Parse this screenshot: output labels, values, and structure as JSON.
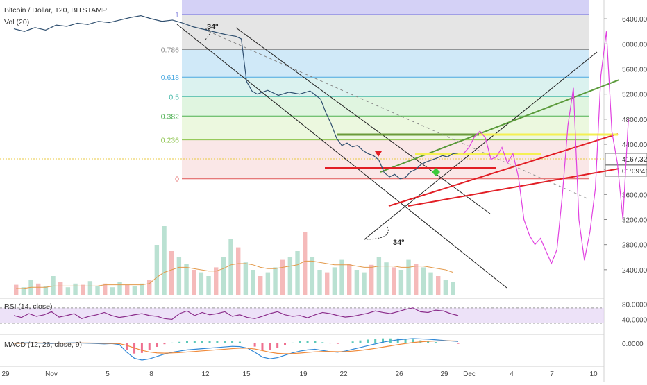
{
  "header": {
    "symbol_title": "Bitcoin / Dollar, 120, BITSTAMP",
    "vol_label": "Vol (20)"
  },
  "chart_data": [
    {
      "type": "line",
      "role": "main-price",
      "title": "Bitcoin / Dollar, 120, BITSTAMP",
      "y_axis_ticks": [
        6400,
        6000,
        5600,
        5200,
        4800,
        4400,
        4000,
        3600,
        3200,
        2800,
        2400
      ],
      "y_axis_tick_labels": [
        "6400.00",
        "6000.00",
        "5600.00",
        "5200.00",
        "4800.00",
        "4400.00",
        "4000.00",
        "3600.00",
        "3200.00",
        "2800.00",
        "2400.00"
      ],
      "ylim": [
        2000,
        6700
      ],
      "x_tick_labels": [
        "29",
        "Nov",
        "5",
        "8",
        "12",
        "15",
        "19",
        "22",
        "26",
        "29",
        "Dec",
        "4",
        "7",
        "10"
      ],
      "current_price_label": "4167.32",
      "countdown_label": "01:09:41",
      "fib_levels": [
        {
          "label": "1",
          "value": 6470
        },
        {
          "label": "0.786",
          "value": 5910
        },
        {
          "label": "0.618",
          "value": 5470
        },
        {
          "label": "0.5",
          "value": 5160
        },
        {
          "label": "0.382",
          "value": 4850
        },
        {
          "label": "0.236",
          "value": 4470
        },
        {
          "label": "0",
          "value": 3850
        }
      ],
      "fib_colors": [
        "#b7b3f0",
        "#cfcfcf",
        "#a9d7f2",
        "#bde8e2",
        "#c6ecc6",
        "#ddf2c4",
        "#f6d3d3"
      ],
      "angle_labels": [
        "34º",
        "34º"
      ],
      "price_path": [
        [
          0,
          6240
        ],
        [
          4,
          6200
        ],
        [
          8,
          6260
        ],
        [
          12,
          6220
        ],
        [
          16,
          6300
        ],
        [
          20,
          6280
        ],
        [
          24,
          6330
        ],
        [
          28,
          6310
        ],
        [
          32,
          6360
        ],
        [
          36,
          6340
        ],
        [
          40,
          6380
        ],
        [
          44,
          6420
        ],
        [
          48,
          6450
        ],
        [
          52,
          6400
        ],
        [
          56,
          6360
        ],
        [
          60,
          6380
        ],
        [
          64,
          6330
        ],
        [
          68,
          6270
        ],
        [
          72,
          6230
        ],
        [
          76,
          6190
        ],
        [
          80,
          6150
        ],
        [
          84,
          6120
        ],
        [
          86,
          6080
        ],
        [
          88,
          5400
        ],
        [
          90,
          5250
        ],
        [
          92,
          5200
        ],
        [
          96,
          5260
        ],
        [
          100,
          5180
        ],
        [
          104,
          5230
        ],
        [
          108,
          5200
        ],
        [
          112,
          5250
        ],
        [
          116,
          5120
        ],
        [
          118,
          4900
        ],
        [
          120,
          4720
        ],
        [
          122,
          4500
        ],
        [
          124,
          4380
        ],
        [
          126,
          4420
        ],
        [
          128,
          4360
        ],
        [
          130,
          4380
        ],
        [
          132,
          4300
        ],
        [
          134,
          4250
        ],
        [
          136,
          4220
        ],
        [
          138,
          4150
        ],
        [
          139,
          4050
        ],
        [
          140,
          3950
        ],
        [
          142,
          3880
        ],
        [
          144,
          3920
        ],
        [
          146,
          3850
        ],
        [
          148,
          3870
        ],
        [
          150,
          3960
        ],
        [
          152,
          4000
        ],
        [
          154,
          4080
        ],
        [
          156,
          4120
        ],
        [
          158,
          4150
        ],
        [
          160,
          4180
        ],
        [
          162,
          4220
        ],
        [
          164,
          4200
        ],
        [
          166,
          4250
        ],
        [
          168,
          4260
        ]
      ],
      "projection_path": [
        [
          170,
          4250
        ],
        [
          172,
          4350
        ],
        [
          174,
          4520
        ],
        [
          176,
          4610
        ],
        [
          178,
          4500
        ],
        [
          180,
          4160
        ],
        [
          182,
          4200
        ],
        [
          184,
          4350
        ],
        [
          186,
          4100
        ],
        [
          188,
          4250
        ],
        [
          190,
          3880
        ],
        [
          192,
          3200
        ],
        [
          194,
          2950
        ],
        [
          196,
          2800
        ],
        [
          198,
          2900
        ],
        [
          200,
          2700
        ],
        [
          202,
          2500
        ],
        [
          204,
          2720
        ],
        [
          206,
          3600
        ],
        [
          208,
          4700
        ],
        [
          210,
          5300
        ],
        [
          212,
          3200
        ],
        [
          214,
          2550
        ],
        [
          216,
          3000
        ],
        [
          218,
          3700
        ],
        [
          220,
          5500
        ],
        [
          222,
          6200
        ],
        [
          224,
          4600
        ],
        [
          226,
          4100
        ],
        [
          228,
          3200
        ],
        [
          230,
          4800
        ]
      ],
      "volume": [
        8,
        6,
        12,
        9,
        7,
        15,
        10,
        6,
        9,
        8,
        11,
        7,
        9,
        6,
        10,
        8,
        7,
        9,
        12,
        40,
        55,
        35,
        30,
        25,
        20,
        18,
        15,
        22,
        30,
        45,
        38,
        26,
        20,
        15,
        18,
        22,
        28,
        30,
        35,
        50,
        30,
        20,
        18,
        22,
        28,
        25,
        20,
        18,
        24,
        30,
        26,
        22,
        20,
        28,
        25,
        22,
        18,
        15,
        12,
        10
      ],
      "volume_ma": [
        5,
        5,
        6,
        6,
        6,
        7,
        7,
        7,
        7,
        7,
        7,
        7,
        8,
        8,
        8,
        8,
        8,
        8,
        9,
        14,
        18,
        20,
        22,
        22,
        21,
        20,
        19,
        19,
        21,
        24,
        25,
        25,
        24,
        22,
        21,
        21,
        22,
        23,
        24,
        27,
        27,
        26,
        25,
        24,
        24,
        24,
        23,
        22,
        22,
        23,
        23,
        23,
        22,
        22,
        23,
        23,
        22,
        21,
        20,
        18
      ]
    },
    {
      "type": "line",
      "role": "rsi",
      "title": "RSI (14, close)",
      "y_axis_tick_labels": [
        "80.0000",
        "40.0000"
      ],
      "ylim": [
        10,
        95
      ],
      "values": [
        50,
        45,
        55,
        48,
        52,
        60,
        46,
        50,
        55,
        42,
        48,
        52,
        58,
        50,
        45,
        48,
        52,
        55,
        50,
        48,
        42,
        40,
        55,
        62,
        50,
        58,
        52,
        55,
        60,
        48,
        52,
        45,
        42,
        48,
        55,
        60,
        52,
        48,
        50,
        44,
        52,
        58,
        55,
        50,
        46,
        48,
        52,
        56,
        62,
        58,
        55,
        60,
        66,
        70,
        60,
        58,
        64,
        62,
        55,
        50
      ]
    },
    {
      "type": "line",
      "role": "macd",
      "title": "MACD (12, 26, close, 9)",
      "y_axis_tick_labels": [
        "0.0000"
      ],
      "ylim": [
        -350,
        150
      ],
      "macd": [
        0,
        5,
        10,
        5,
        0,
        -5,
        0,
        5,
        10,
        5,
        0,
        -5,
        -10,
        -5,
        -20,
        -150,
        -250,
        -280,
        -260,
        -220,
        -180,
        -150,
        -130,
        -110,
        -100,
        -90,
        -80,
        -70,
        -60,
        -50,
        -55,
        -80,
        -150,
        -230,
        -260,
        -240,
        -200,
        -160,
        -130,
        -110,
        -100,
        -120,
        -140,
        -150,
        -130,
        -100,
        -70,
        -40,
        -10,
        20,
        40,
        60,
        70,
        80,
        75,
        70,
        60,
        50,
        40,
        30
      ],
      "signal": [
        0,
        2,
        5,
        6,
        5,
        3,
        2,
        3,
        5,
        6,
        5,
        3,
        0,
        -2,
        -6,
        -35,
        -78,
        -118,
        -146,
        -161,
        -165,
        -162,
        -155,
        -146,
        -137,
        -127,
        -118,
        -108,
        -99,
        -89,
        -82,
        -82,
        -95,
        -122,
        -150,
        -168,
        -175,
        -172,
        -164,
        -153,
        -143,
        -138,
        -138,
        -141,
        -139,
        -131,
        -119,
        -103,
        -85,
        -64,
        -43,
        -22,
        -4,
        13,
        25,
        34,
        39,
        41,
        41,
        39
      ]
    }
  ]
}
